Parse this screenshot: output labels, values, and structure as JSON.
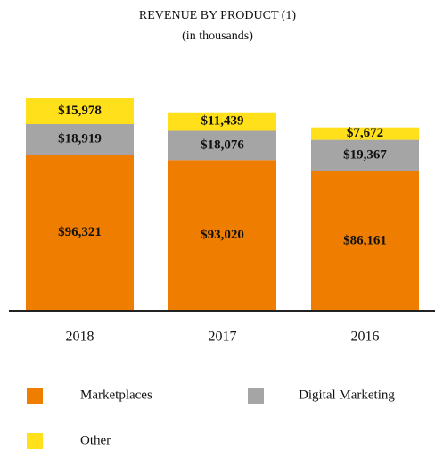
{
  "chart_data": {
    "type": "stacked_bar",
    "title": "REVENUE BY PRODUCT (1)",
    "subtitle": "(in thousands)",
    "categories": [
      "2018",
      "2017",
      "2016"
    ],
    "series": [
      {
        "name": "Marketplaces",
        "color": "#ee7d00",
        "values": [
          96321,
          93020,
          86161
        ],
        "value_labels": [
          "$96,321",
          "$93,020",
          "$86,161"
        ]
      },
      {
        "name": "Digital Marketing",
        "color": "#a5a5a6",
        "values": [
          18919,
          18076,
          19367
        ],
        "value_labels": [
          "$18,919",
          "$18,076",
          "$19,367"
        ]
      },
      {
        "name": "Other",
        "color": "#ffe01a",
        "values": [
          15978,
          11439,
          7672
        ],
        "value_labels": [
          "$15,978",
          "$11,439",
          "$7,672"
        ]
      }
    ]
  }
}
